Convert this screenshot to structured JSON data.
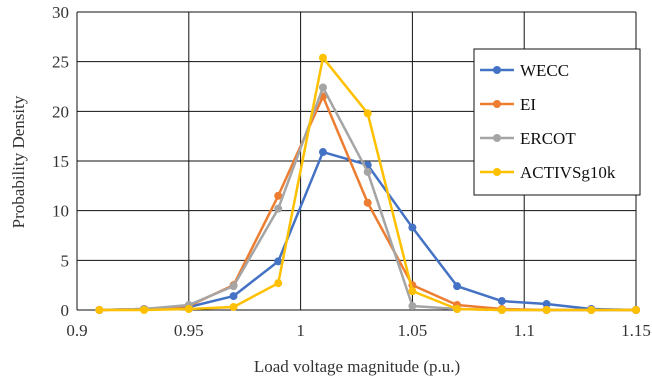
{
  "chart_data": {
    "type": "line",
    "title": "",
    "xlabel": "Load voltage magnitude (p.u.)",
    "ylabel": "Probability Density",
    "xlim": [
      0.9,
      1.15
    ],
    "ylim": [
      0,
      30
    ],
    "xticks": [
      "0.9",
      "0.95",
      "1",
      "1.05",
      "1.1",
      "1.15"
    ],
    "yticks": [
      "0",
      "5",
      "10",
      "15",
      "20",
      "25",
      "30"
    ],
    "grid": true,
    "legend_position": "right",
    "x": [
      0.91,
      0.93,
      0.95,
      0.97,
      0.99,
      1.01,
      1.03,
      1.05,
      1.07,
      1.09,
      1.11,
      1.13,
      1.15
    ],
    "series": [
      {
        "name": "WECC",
        "color": "#4472C4",
        "values": [
          0.0,
          0.1,
          0.3,
          1.4,
          4.9,
          15.9,
          14.6,
          8.3,
          2.4,
          0.9,
          0.6,
          0.1,
          0.0
        ]
      },
      {
        "name": "EI",
        "color": "#ED7D31",
        "values": [
          0.0,
          0.1,
          0.4,
          2.5,
          11.5,
          21.5,
          10.8,
          2.5,
          0.5,
          0.1,
          0.0,
          0.0,
          0.0
        ]
      },
      {
        "name": "ERCOT",
        "color": "#A5A5A5",
        "values": [
          0.0,
          0.1,
          0.5,
          2.4,
          10.2,
          22.4,
          13.9,
          0.4,
          0.1,
          0.0,
          0.0,
          0.0,
          0.0
        ]
      },
      {
        "name": "ACTIVSg10k",
        "color": "#FFC000",
        "values": [
          0.0,
          0.0,
          0.1,
          0.3,
          2.7,
          25.4,
          19.8,
          1.9,
          0.1,
          0.0,
          0.0,
          0.0,
          0.0
        ]
      }
    ]
  }
}
